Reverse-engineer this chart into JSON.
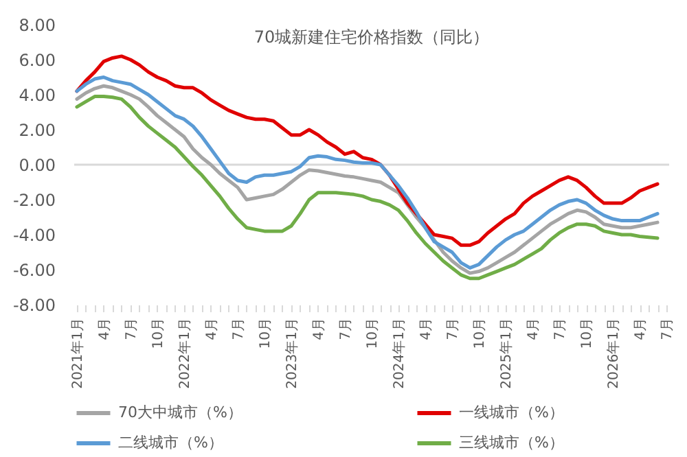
{
  "chart_data": {
    "type": "line",
    "title": "70城新建住宅价格指数（同比）",
    "categories": [
      "2021年1月",
      null,
      null,
      "4月",
      null,
      null,
      "7月",
      null,
      null,
      "10月",
      null,
      null,
      "2022年1月",
      null,
      null,
      "4月",
      null,
      null,
      "7月",
      null,
      null,
      "10月",
      null,
      null,
      "2023年1月",
      null,
      null,
      "4月",
      null,
      null,
      "7月",
      null,
      null,
      "10月",
      null,
      null,
      "2024年1月",
      null,
      null,
      "4月",
      null,
      null,
      "7月",
      null,
      null,
      "10月",
      null,
      null,
      "2025年1月",
      null,
      null,
      "4月",
      null,
      null,
      "7月",
      null,
      null,
      "10月",
      null,
      null,
      "2026年1月",
      null,
      null,
      "4月",
      null,
      null,
      "7月"
    ],
    "series": [
      {
        "name": "70大中城市（%）",
        "color": "#a5a5a5",
        "values": [
          3.75,
          4.1,
          4.35,
          4.5,
          4.4,
          4.2,
          4.0,
          3.75,
          3.3,
          2.8,
          2.4,
          2.0,
          1.6,
          0.9,
          0.4,
          0.0,
          -0.5,
          -0.9,
          -1.3,
          -2.0,
          -1.9,
          -1.8,
          -1.7,
          -1.4,
          -1.0,
          -0.6,
          -0.3,
          -0.35,
          -0.45,
          -0.55,
          -0.65,
          -0.7,
          -0.8,
          -0.9,
          -1.0,
          -1.3,
          -1.6,
          -2.3,
          -3.0,
          -3.6,
          -4.3,
          -5.0,
          -5.5,
          -5.9,
          -6.2,
          -6.1,
          -5.9,
          -5.6,
          -5.3,
          -5.0,
          -4.6,
          -4.2,
          -3.8,
          -3.4,
          -3.1,
          -2.8,
          -2.6,
          -2.7,
          -3.0,
          -3.4,
          -3.5,
          -3.6,
          -3.6,
          -3.5,
          -3.4,
          -3.3,
          null
        ]
      },
      {
        "name": "一线城市（%）",
        "color": "#e00000",
        "values": [
          4.2,
          4.8,
          5.3,
          5.9,
          6.1,
          6.2,
          6.0,
          5.7,
          5.3,
          5.0,
          4.8,
          4.5,
          4.4,
          4.4,
          4.1,
          3.7,
          3.4,
          3.1,
          2.9,
          2.7,
          2.6,
          2.6,
          2.5,
          2.1,
          1.7,
          1.7,
          2.0,
          1.7,
          1.3,
          1.0,
          0.6,
          0.75,
          0.4,
          0.3,
          0.0,
          -0.6,
          -1.4,
          -2.2,
          -2.8,
          -3.4,
          -4.0,
          -4.1,
          -4.2,
          -4.6,
          -4.6,
          -4.4,
          -3.9,
          -3.5,
          -3.1,
          -2.8,
          -2.2,
          -1.8,
          -1.5,
          -1.2,
          -0.9,
          -0.7,
          -0.9,
          -1.3,
          -1.8,
          -2.2,
          -2.2,
          -2.2,
          -1.9,
          -1.5,
          -1.3,
          -1.1,
          null
        ]
      },
      {
        "name": "二线城市（%）",
        "color": "#5b9bd5",
        "values": [
          4.2,
          4.6,
          4.9,
          5.0,
          4.8,
          4.7,
          4.6,
          4.3,
          4.0,
          3.6,
          3.2,
          2.8,
          2.6,
          2.2,
          1.6,
          0.9,
          0.2,
          -0.5,
          -0.9,
          -1.0,
          -0.7,
          -0.6,
          -0.6,
          -0.5,
          -0.4,
          -0.1,
          0.4,
          0.5,
          0.45,
          0.3,
          0.25,
          0.15,
          0.1,
          0.1,
          0.0,
          -0.6,
          -1.2,
          -1.9,
          -2.7,
          -3.6,
          -4.4,
          -4.7,
          -5.0,
          -5.6,
          -5.9,
          -5.7,
          -5.2,
          -4.7,
          -4.3,
          -4.0,
          -3.8,
          -3.4,
          -3.0,
          -2.6,
          -2.3,
          -2.1,
          -2.0,
          -2.2,
          -2.6,
          -2.9,
          -3.1,
          -3.2,
          -3.2,
          -3.2,
          -3.0,
          -2.8,
          null
        ]
      },
      {
        "name": "三线城市（%）",
        "color": "#70ad47",
        "values": [
          3.3,
          3.6,
          3.9,
          3.9,
          3.85,
          3.75,
          3.3,
          2.7,
          2.2,
          1.8,
          1.4,
          1.0,
          0.45,
          -0.1,
          -0.6,
          -1.2,
          -1.8,
          -2.5,
          -3.1,
          -3.6,
          -3.7,
          -3.8,
          -3.8,
          -3.8,
          -3.5,
          -2.8,
          -2.0,
          -1.6,
          -1.6,
          -1.6,
          -1.65,
          -1.7,
          -1.8,
          -2.0,
          -2.1,
          -2.3,
          -2.6,
          -3.2,
          -3.9,
          -4.5,
          -5.0,
          -5.5,
          -5.9,
          -6.3,
          -6.5,
          -6.5,
          -6.3,
          -6.1,
          -5.9,
          -5.7,
          -5.4,
          -5.1,
          -4.8,
          -4.3,
          -3.9,
          -3.6,
          -3.4,
          -3.4,
          -3.5,
          -3.8,
          -3.9,
          -4.0,
          -4.0,
          -4.1,
          -4.15,
          -4.2,
          null
        ]
      }
    ],
    "ylim": [
      -8,
      8
    ],
    "yticks": [
      {
        "value": -8,
        "label": "-8.00"
      },
      {
        "value": -6,
        "label": "-6.00"
      },
      {
        "value": -4,
        "label": "-4.00"
      },
      {
        "value": -2,
        "label": "-2.00"
      },
      {
        "value": 0,
        "label": "0.00"
      },
      {
        "value": 2,
        "label": "2.00"
      },
      {
        "value": 4,
        "label": "4.00"
      },
      {
        "value": 6,
        "label": "6.00"
      },
      {
        "value": 8,
        "label": "8.00"
      }
    ],
    "ref_lines": [
      {
        "axis": "y",
        "value": 0,
        "color": "#d9d9d9"
      }
    ],
    "grid": false,
    "legend": "bottom",
    "marker": "none",
    "line_style": "solid"
  }
}
